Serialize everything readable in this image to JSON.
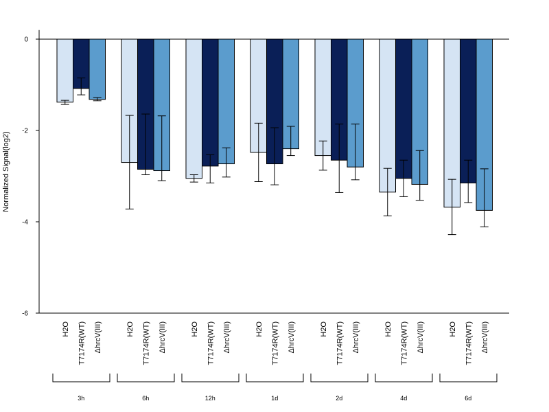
{
  "chart_data": {
    "type": "bar",
    "title": "",
    "xlabel": "",
    "ylabel": "Normalized Signal(log2)",
    "ylim": [
      -6,
      0.2
    ],
    "yticks": [
      0,
      -2,
      -4,
      -6
    ],
    "ytick_labels": [
      "0",
      "-2",
      "-4",
      "-6"
    ],
    "conditions": [
      "H2O",
      "T7174R(WT)",
      "ΔhrcV(III)"
    ],
    "groups": [
      "3h",
      "6h",
      "12h",
      "1d",
      "2d",
      "4d",
      "6d"
    ],
    "colors": [
      "#d5e4f4",
      "#0a1f57",
      "#5b9ccd"
    ],
    "legend": "none",
    "grid": false,
    "series": [
      {
        "values": [
          -1.38,
          -2.7,
          -3.05,
          -2.48,
          -2.55,
          -3.35,
          -3.68
        ],
        "err_low": [
          -1.43,
          -3.72,
          -3.13,
          -3.12,
          -2.87,
          -3.87,
          -4.28
        ],
        "err_high": [
          -1.34,
          -1.67,
          -2.97,
          -1.84,
          -2.23,
          -2.83,
          -3.07
        ]
      },
      {
        "values": [
          -1.08,
          -2.85,
          -2.78,
          -2.73,
          -2.65,
          -3.05,
          -3.15
        ],
        "err_low": [
          -1.22,
          -2.97,
          -3.15,
          -3.19,
          -3.36,
          -3.45,
          -3.58
        ],
        "err_high": [
          -0.85,
          -1.64,
          -2.53,
          -1.94,
          -1.86,
          -2.65,
          -2.65
        ]
      },
      {
        "values": [
          -1.32,
          -2.88,
          -2.73,
          -2.4,
          -2.8,
          -3.18,
          -3.75
        ],
        "err_low": [
          -1.35,
          -3.1,
          -3.02,
          -2.55,
          -3.08,
          -3.53,
          -4.11
        ],
        "err_high": [
          -1.28,
          -1.68,
          -2.38,
          -1.91,
          -1.86,
          -2.44,
          -2.84
        ]
      }
    ]
  }
}
